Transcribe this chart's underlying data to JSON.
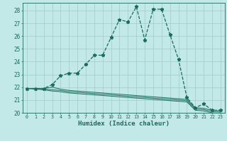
{
  "xlabel": "Humidex (Indice chaleur)",
  "background_color": "#c2e8e8",
  "grid_color": "#a0cccc",
  "line_color": "#1a6b5a",
  "xlim": [
    -0.5,
    23.5
  ],
  "ylim": [
    20,
    28.6
  ],
  "yticks": [
    20,
    21,
    22,
    23,
    24,
    25,
    26,
    27,
    28
  ],
  "xticks": [
    0,
    1,
    2,
    3,
    4,
    5,
    6,
    7,
    8,
    9,
    10,
    11,
    12,
    13,
    14,
    15,
    16,
    17,
    18,
    19,
    20,
    21,
    22,
    23
  ],
  "series": [
    [
      21.9,
      21.9,
      21.9,
      22.2,
      22.9,
      23.1,
      23.1,
      23.8,
      24.5,
      24.5,
      25.9,
      27.3,
      27.1,
      28.3,
      25.7,
      28.1,
      28.1,
      26.1,
      24.2,
      21.2,
      20.4,
      20.7,
      20.2,
      20.2
    ],
    [
      21.9,
      21.9,
      21.9,
      22.0,
      21.85,
      21.75,
      21.7,
      21.65,
      21.6,
      21.55,
      21.5,
      21.45,
      21.4,
      21.35,
      21.3,
      21.25,
      21.2,
      21.15,
      21.1,
      21.05,
      20.4,
      20.35,
      20.2,
      20.15
    ],
    [
      21.9,
      21.9,
      21.85,
      21.8,
      21.75,
      21.65,
      21.6,
      21.55,
      21.5,
      21.45,
      21.4,
      21.35,
      21.3,
      21.25,
      21.2,
      21.15,
      21.1,
      21.05,
      21.0,
      20.95,
      20.3,
      20.25,
      20.1,
      20.05
    ],
    [
      21.9,
      21.85,
      21.8,
      21.7,
      21.65,
      21.55,
      21.5,
      21.45,
      21.4,
      21.35,
      21.3,
      21.25,
      21.2,
      21.15,
      21.1,
      21.05,
      21.0,
      20.95,
      20.9,
      20.85,
      20.2,
      20.15,
      20.0,
      19.95
    ]
  ]
}
